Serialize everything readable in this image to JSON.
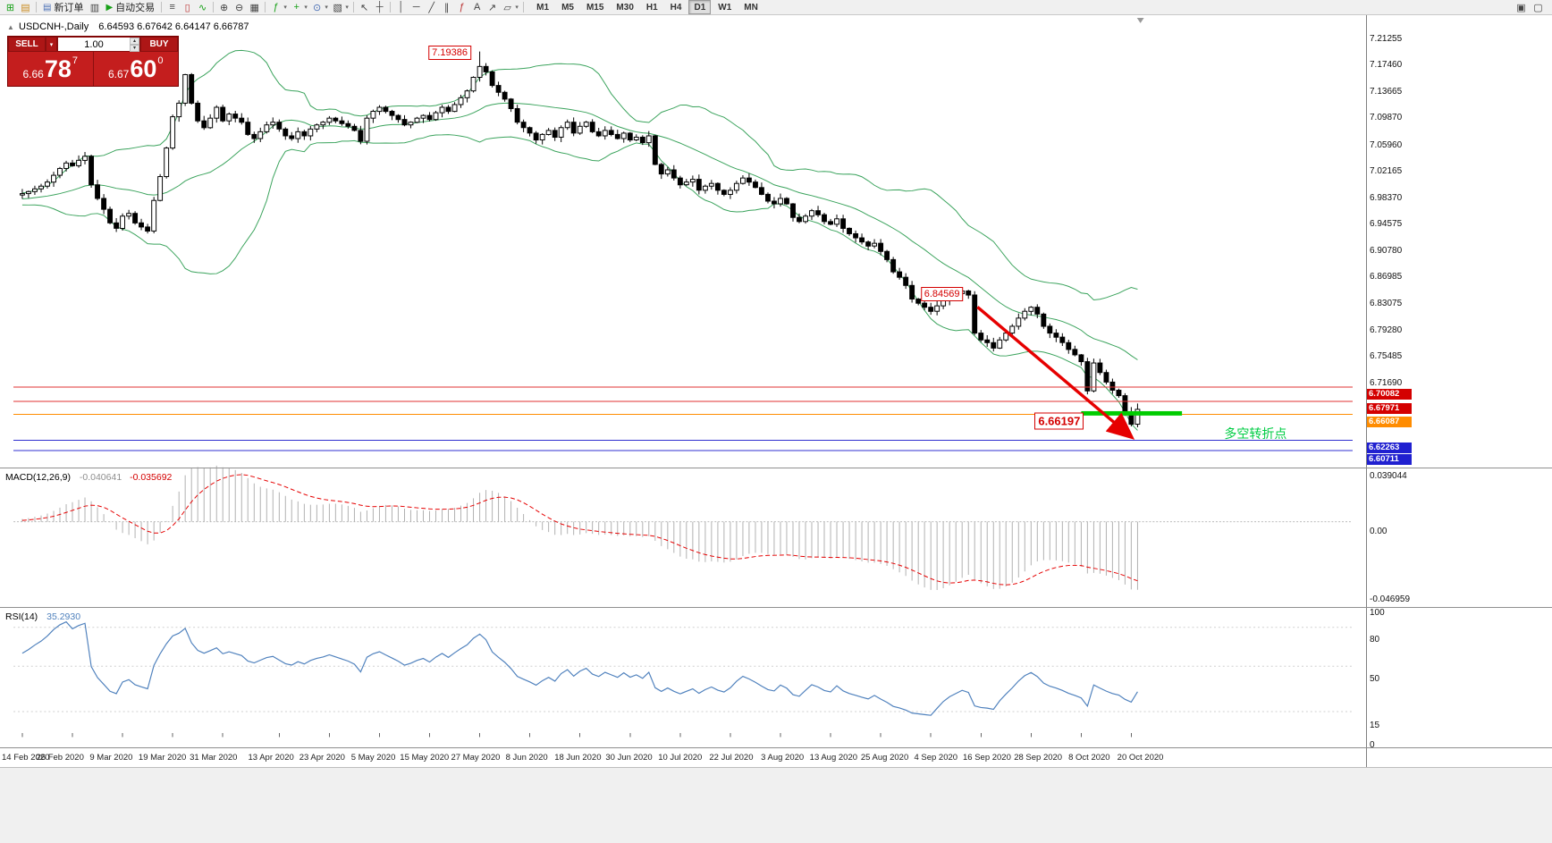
{
  "toolbar": {
    "new_order_label": "新订单",
    "autotrading_label": "自动交易",
    "timeframes": [
      "M1",
      "M5",
      "M15",
      "M30",
      "H1",
      "H4",
      "D1",
      "W1",
      "MN"
    ],
    "timeframe_active": "D1"
  },
  "icons": {
    "new_chart": "⊞",
    "profiles": "▤",
    "new_order": "▤",
    "market_watch": "▥",
    "autotrading": "▶",
    "bars": "≡",
    "candles": "▯",
    "line_chart": "∿",
    "zoom_in": "⊕",
    "zoom_out": "⊖",
    "grid": "▦",
    "indicators": "ƒ",
    "add_indicator": "+",
    "cycles": "⊙",
    "properties": "▧",
    "cursor": "↖",
    "crosshair": "┼",
    "vline": "│",
    "hline": "─",
    "trendline": "╱",
    "channel": "∥",
    "fibonacci": "ƒ",
    "text_tool": "A",
    "arrows": "↗",
    "shapes": "▱",
    "dropdown": "▾",
    "spin_up": "▴",
    "spin_down": "▾",
    "window_tile": "▣",
    "window_cascade": "▢",
    "collapse": "▲",
    "shift_marker": "▼"
  },
  "chart": {
    "symbol": "USDCNH-,Daily",
    "ohlc": "6.64593 6.67642 6.64147 6.66787"
  },
  "trade_panel": {
    "sell_label": "SELL",
    "buy_label": "BUY",
    "volume": "1.00",
    "sell_small": "6.66",
    "sell_big": "78",
    "sell_sup": "7",
    "buy_small": "6.67",
    "buy_big": "60",
    "buy_sup": "0"
  },
  "annotations": {
    "high": "7.19386",
    "peak": "6.84569",
    "level": "6.66197",
    "turning_text": "多空转折点"
  },
  "price_axis": {
    "ticks": [
      "7.21255",
      "7.17460",
      "7.13665",
      "7.09870",
      "7.05960",
      "7.02165",
      "6.98370",
      "6.94575",
      "6.90780",
      "6.86985",
      "6.83075",
      "6.79280",
      "6.75485",
      "6.71690"
    ],
    "badges": [
      {
        "text": "6.70082",
        "bg": "#d40000"
      },
      {
        "text": "6.67971",
        "bg": "#d40000"
      },
      {
        "text": "6.66087",
        "bg": "#ff8c00"
      },
      {
        "text": "6.62263",
        "bg": "#2020d0"
      },
      {
        "text": "6.60711",
        "bg": "#2020d0"
      }
    ]
  },
  "hlines": [
    {
      "price": 6.70082,
      "color": "#e03030"
    },
    {
      "price": 6.67971,
      "color": "#e03030"
    },
    {
      "price": 6.66087,
      "color": "#ff8c00"
    },
    {
      "price": 6.62263,
      "color": "#3030d0"
    },
    {
      "price": 6.60711,
      "color": "#3030d0"
    }
  ],
  "indicators": {
    "macd": {
      "name": "MACD(12,26,9)",
      "v1": "-0.040641",
      "v2": "-0.035692",
      "axis": [
        "0.039044",
        "0.00",
        "-0.046959"
      ]
    },
    "rsi": {
      "name": "RSI(14)",
      "value": "35.2930",
      "axis": [
        "100",
        "80",
        "50",
        "15",
        "0"
      ],
      "levels": [
        80,
        50,
        15
      ]
    }
  },
  "time_axis": {
    "labels": [
      {
        "text": "14 Feb 2020",
        "idx": 0
      },
      {
        "text": "26 Feb 2020",
        "idx": 8
      },
      {
        "text": "9 Mar 2020",
        "idx": 16
      },
      {
        "text": "19 Mar 2020",
        "idx": 24
      },
      {
        "text": "31 Mar 2020",
        "idx": 32
      },
      {
        "text": "13 Apr 2020",
        "idx": 41
      },
      {
        "text": "23 Apr 2020",
        "idx": 49
      },
      {
        "text": "5 May 2020",
        "idx": 57
      },
      {
        "text": "15 May 2020",
        "idx": 65
      },
      {
        "text": "27 May 2020",
        "idx": 73
      },
      {
        "text": "8 Jun 2020",
        "idx": 81
      },
      {
        "text": "18 Jun 2020",
        "idx": 89
      },
      {
        "text": "30 Jun 2020",
        "idx": 97
      },
      {
        "text": "10 Jul 2020",
        "idx": 105
      },
      {
        "text": "22 Jul 2020",
        "idx": 113
      },
      {
        "text": "3 Aug 2020",
        "idx": 121
      },
      {
        "text": "13 Aug 2020",
        "idx": 129
      },
      {
        "text": "25 Aug 2020",
        "idx": 137
      },
      {
        "text": "4 Sep 2020",
        "idx": 145
      },
      {
        "text": "16 Sep 2020",
        "idx": 153
      },
      {
        "text": "28 Sep 2020",
        "idx": 161
      },
      {
        "text": "8 Oct 2020",
        "idx": 169
      },
      {
        "text": "20 Oct 2020",
        "idx": 177
      }
    ]
  },
  "chart_data": {
    "type": "candlestick",
    "symbol": "USDCNH-",
    "timeframe": "Daily",
    "last_ohlc": {
      "open": 6.64593,
      "high": 6.67642,
      "low": 6.64147,
      "close": 6.66787
    },
    "indicators": [
      "Bollinger Bands(20,2)",
      "MACD(12,26,9)",
      "RSI(14)"
    ],
    "prepend": [
      6.975,
      6.972,
      6.97,
      6.973,
      6.976,
      6.98,
      6.983,
      6.98,
      6.978,
      6.975,
      6.972,
      6.97,
      6.974,
      6.978,
      6.982,
      6.98,
      6.977,
      6.975,
      6.98,
      6.983
    ],
    "closes": [
      6.985,
      6.988,
      6.992,
      6.996,
      7.002,
      7.012,
      7.022,
      7.03,
      7.026,
      7.034,
      7.04,
      6.998,
      6.978,
      6.962,
      6.942,
      6.934,
      6.952,
      6.956,
      6.942,
      6.936,
      6.93,
      6.975,
      7.01,
      7.052,
      7.098,
      7.118,
      7.16,
      7.118,
      7.092,
      7.082,
      7.096,
      7.112,
      7.092,
      7.102,
      7.096,
      7.09,
      7.072,
      7.066,
      7.076,
      7.086,
      7.09,
      7.08,
      7.07,
      7.066,
      7.076,
      7.07,
      7.08,
      7.086,
      7.09,
      7.096,
      7.092,
      7.088,
      7.084,
      7.078,
      7.062,
      7.096,
      7.106,
      7.112,
      7.106,
      7.1,
      7.094,
      7.086,
      7.09,
      7.096,
      7.1,
      7.094,
      7.104,
      7.112,
      7.106,
      7.116,
      7.126,
      7.136,
      7.156,
      7.172,
      7.164,
      7.144,
      7.134,
      7.124,
      7.11,
      7.09,
      7.082,
      7.074,
      7.064,
      7.072,
      7.078,
      7.068,
      7.082,
      7.09,
      7.074,
      7.084,
      7.09,
      7.076,
      7.07,
      7.078,
      7.072,
      7.066,
      7.074,
      7.064,
      7.068,
      7.06,
      7.07,
      7.028,
      7.014,
      7.02,
      7.008,
      6.998,
      7.002,
      7.006,
      6.99,
      6.996,
      7.0,
      6.99,
      6.984,
      6.99,
      7.0,
      7.008,
      7.002,
      6.994,
      6.984,
      6.974,
      6.97,
      6.978,
      6.97,
      6.95,
      6.944,
      6.952,
      6.96,
      6.954,
      6.944,
      6.94,
      6.948,
      6.934,
      6.926,
      6.92,
      6.914,
      6.908,
      6.912,
      6.9,
      6.888,
      6.87,
      6.862,
      6.85,
      6.83,
      6.824,
      6.818,
      6.812,
      6.82,
      6.828,
      6.834,
      6.838,
      6.842,
      6.836,
      6.78,
      6.77,
      6.766,
      6.758,
      6.77,
      6.78,
      6.79,
      6.802,
      6.812,
      6.818,
      6.808,
      6.79,
      6.78,
      6.774,
      6.766,
      6.756,
      6.748,
      6.738,
      6.695,
      6.736,
      6.722,
      6.708,
      6.696,
      6.688,
      6.664,
      6.646,
      6.668
    ],
    "specials": {
      "73": {
        "h": 7.19386
      },
      "150": {
        "h": 6.84569
      },
      "178": {
        "o": 6.64593,
        "h": 6.67642,
        "l": 6.64147,
        "c": 6.66787
      }
    }
  }
}
